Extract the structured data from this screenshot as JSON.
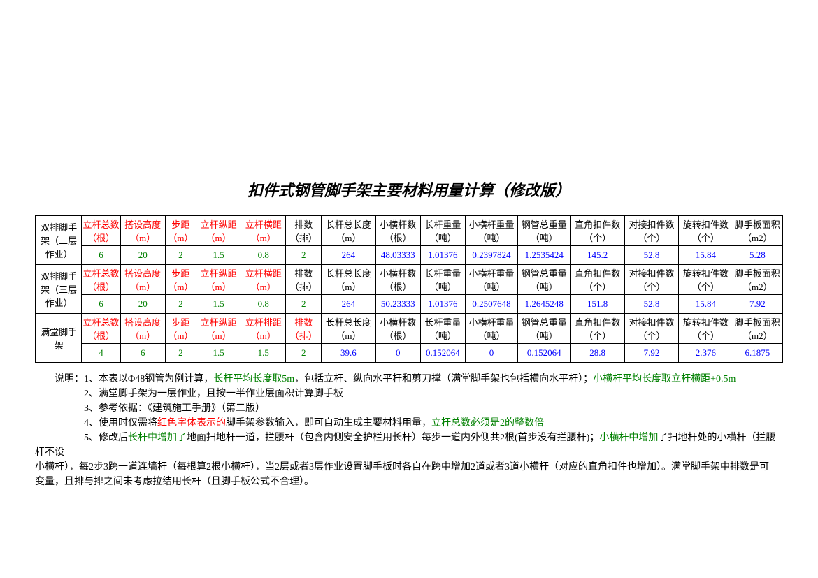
{
  "title": "扣件式钢管脚手架主要材料用量计算（修改版）",
  "sections": [
    {
      "label": "双排脚手架（二层作业）",
      "headers": [
        {
          "line1": "立杆总数",
          "line2": "（根）",
          "red": true
        },
        {
          "line1": "搭设高度",
          "line2": "（m）",
          "red": true
        },
        {
          "line1": "步距",
          "line2": "（m）",
          "red": true
        },
        {
          "line1": "立杆纵距",
          "line2": "（m）",
          "red": true
        },
        {
          "line1": "立杆横距",
          "line2": "（m）",
          "red": true
        },
        {
          "line1": "排数",
          "line2": "（排）",
          "red": false
        },
        {
          "line1": "长杆总长度",
          "line2": "（m）",
          "red": false
        },
        {
          "line1": "小横杆数",
          "line2": "（根）",
          "red": false
        },
        {
          "line1": "长杆重量",
          "line2": "（吨）",
          "red": false
        },
        {
          "line1": "小横杆重量",
          "line2": "（吨）",
          "red": false
        },
        {
          "line1": "钢管总重量",
          "line2": "（吨）",
          "red": false
        },
        {
          "line1": "直角扣件数",
          "line2": "（个）",
          "red": false
        },
        {
          "line1": "对接扣件数",
          "line2": "（个）",
          "red": false
        },
        {
          "line1": "旋转扣件数",
          "line2": "（个）",
          "red": false
        },
        {
          "line1": "脚手板面积",
          "line2": "（m2）",
          "red": false
        }
      ],
      "values": [
        {
          "v": "6",
          "green": true
        },
        {
          "v": "20",
          "green": true
        },
        {
          "v": "2",
          "green": true
        },
        {
          "v": "1.5",
          "green": true
        },
        {
          "v": "0.8",
          "green": true
        },
        {
          "v": "2",
          "green": true
        },
        {
          "v": "264",
          "blue": true
        },
        {
          "v": "48.03333",
          "blue": true
        },
        {
          "v": "1.01376",
          "blue": true
        },
        {
          "v": "0.2397824",
          "blue": true
        },
        {
          "v": "1.2535424",
          "blue": true
        },
        {
          "v": "145.2",
          "blue": true
        },
        {
          "v": "52.8",
          "blue": true
        },
        {
          "v": "15.84",
          "blue": true
        },
        {
          "v": "5.28",
          "blue": true
        }
      ]
    },
    {
      "label": "双排脚手架（三层作业）",
      "headers": [
        {
          "line1": "立杆总数",
          "line2": "（根）",
          "red": true
        },
        {
          "line1": "搭设高度",
          "line2": "（m）",
          "red": true
        },
        {
          "line1": "步距",
          "line2": "（m）",
          "red": true
        },
        {
          "line1": "立杆纵距",
          "line2": "（m）",
          "red": true
        },
        {
          "line1": "立杆横距",
          "line2": "（m）",
          "red": true
        },
        {
          "line1": "排数",
          "line2": "（排）",
          "red": false
        },
        {
          "line1": "长杆总长度",
          "line2": "（m）",
          "red": false
        },
        {
          "line1": "小横杆数",
          "line2": "（根）",
          "red": false
        },
        {
          "line1": "长杆重量",
          "line2": "（吨）",
          "red": false
        },
        {
          "line1": "小横杆重量",
          "line2": "（吨）",
          "red": false
        },
        {
          "line1": "钢管总重量",
          "line2": "（吨）",
          "red": false
        },
        {
          "line1": "直角扣件数",
          "line2": "（个）",
          "red": false
        },
        {
          "line1": "对接扣件数",
          "line2": "（个）",
          "red": false
        },
        {
          "line1": "旋转扣件数",
          "line2": "（个）",
          "red": false
        },
        {
          "line1": "脚手板面积",
          "line2": "（m2）",
          "red": false
        }
      ],
      "values": [
        {
          "v": "6",
          "green": true
        },
        {
          "v": "20",
          "green": true
        },
        {
          "v": "2",
          "green": true
        },
        {
          "v": "1.5",
          "green": true
        },
        {
          "v": "0.8",
          "green": true
        },
        {
          "v": "2",
          "green": true
        },
        {
          "v": "264",
          "blue": true
        },
        {
          "v": "50.23333",
          "blue": true
        },
        {
          "v": "1.01376",
          "blue": true
        },
        {
          "v": "0.2507648",
          "blue": true
        },
        {
          "v": "1.2645248",
          "blue": true
        },
        {
          "v": "151.8",
          "blue": true
        },
        {
          "v": "52.8",
          "blue": true
        },
        {
          "v": "15.84",
          "blue": true
        },
        {
          "v": "7.92",
          "blue": true
        }
      ]
    },
    {
      "label": "满堂脚手架",
      "headers": [
        {
          "line1": "立杆总数",
          "line2": "（根）",
          "red": true
        },
        {
          "line1": "搭设高度",
          "line2": "（m）",
          "red": true
        },
        {
          "line1": "步距",
          "line2": "（m）",
          "red": true
        },
        {
          "line1": "立杆纵距",
          "line2": "（m）",
          "red": true
        },
        {
          "line1": "立杆排距",
          "line2": "（m）",
          "red": true
        },
        {
          "line1": "排数",
          "line2": "（排）",
          "red": true
        },
        {
          "line1": "长杆总长度",
          "line2": "（m）",
          "red": false
        },
        {
          "line1": "小横杆数",
          "line2": "（根）",
          "red": false
        },
        {
          "line1": "长杆重量",
          "line2": "（吨）",
          "red": false
        },
        {
          "line1": "小横杆重量",
          "line2": "（吨）",
          "red": false
        },
        {
          "line1": "钢管总重量",
          "line2": "（吨）",
          "red": false
        },
        {
          "line1": "直角扣件数",
          "line2": "（个）",
          "red": false
        },
        {
          "line1": "对接扣件数",
          "line2": "（个）",
          "red": false
        },
        {
          "line1": "旋转扣件数",
          "line2": "（个）",
          "red": false
        },
        {
          "line1": "脚手板面积",
          "line2": "（m2）",
          "red": false
        }
      ],
      "values": [
        {
          "v": "4",
          "green": true
        },
        {
          "v": "6",
          "green": true
        },
        {
          "v": "2",
          "green": true
        },
        {
          "v": "1.5",
          "green": true
        },
        {
          "v": "1.5",
          "green": true
        },
        {
          "v": "2",
          "green": true
        },
        {
          "v": "39.6",
          "blue": true
        },
        {
          "v": "0",
          "blue": true
        },
        {
          "v": "0.152064",
          "blue": true
        },
        {
          "v": "0",
          "blue": true
        },
        {
          "v": "0.152064",
          "blue": true
        },
        {
          "v": "28.8",
          "blue": true
        },
        {
          "v": "7.92",
          "blue": true
        },
        {
          "v": "2.376",
          "blue": true
        },
        {
          "v": "6.1875",
          "blue": true
        }
      ]
    }
  ],
  "notes": {
    "n1a": "说明：1、本表以Φ48钢管为例计算，",
    "n1b": "长杆平均长度取5m",
    "n1c": "，包括立杆、纵向水平杆和剪刀撑（满堂脚手架也包括横向水平杆）；",
    "n1d": "小横杆平均长度取立杆横距+0.5m",
    "n2": "2、满堂脚手架为一层作业，且按一半作业层面积计算脚手板",
    "n3": "3、参考依据：《建筑施工手册》（第二版）",
    "n4a": "4、使用时仅需将",
    "n4b": "红色字体表示的",
    "n4c": "脚手架参数输入，即可自动生成主要材料用量，",
    "n4d": "立杆总数必须是2的整数倍",
    "n5a": "5、修改后",
    "n5b": "长杆中增加了",
    "n5c": "地面扫地杆一道，拦腰杆（包含内侧安全护栏用长杆）每步一道内外侧共2根(首步没有拦腰杆)；",
    "n5d": "小横杆中增加",
    "n5e": "了扫地杆处的小横杆（拦腰杆不设",
    "n5f": "小横杆），每2步3跨一道连墙杆（每根算2根小横杆），当2层或者3层作业设置脚手板时各自在跨中增加2道或者3道小横杆（对应的直角扣件也增加）。满堂脚手架中排数是可",
    "n5g": "变量，且排与排之间未考虑拉结用长杆（且脚手板公式不合理）。"
  },
  "col_widths": [
    "58",
    "50",
    "58",
    "40",
    "58",
    "58",
    "46",
    "70",
    "58",
    "58",
    "68",
    "68",
    "70",
    "70",
    "70",
    "64"
  ]
}
